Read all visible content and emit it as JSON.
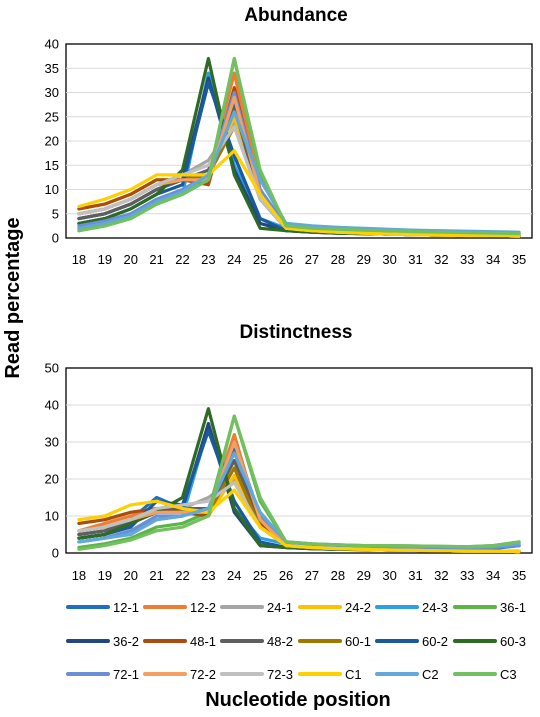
{
  "ylabel": "Read percentage",
  "xlabel": "Nucleotide position",
  "series_names": [
    "12-1",
    "12-2",
    "24-1",
    "24-2",
    "24-3",
    "36-1",
    "36-2",
    "48-1",
    "48-2",
    "60-1",
    "60-2",
    "60-3",
    "72-1",
    "72-2",
    "72-3",
    "C1",
    "C2",
    "C3"
  ],
  "series_colors": [
    "#1F6FC4",
    "#ED7D31",
    "#A5A5A5",
    "#FFC000",
    "#2E9FE0",
    "#5BB545",
    "#23477F",
    "#A84C10",
    "#5F5F5F",
    "#A07800",
    "#1A5A9A",
    "#2D6B24",
    "#6A8FD6",
    "#F4A060",
    "#C0C0C0",
    "#FFD000",
    "#62A8DA",
    "#72C060"
  ],
  "chart_data": [
    {
      "type": "line",
      "title": "Abundance",
      "x": [
        18,
        19,
        20,
        21,
        22,
        23,
        24,
        25,
        26,
        27,
        28,
        29,
        30,
        31,
        32,
        33,
        34,
        35
      ],
      "ylim": [
        0,
        40
      ],
      "yticks": [
        0,
        5,
        10,
        15,
        20,
        25,
        30,
        35,
        40
      ],
      "grid": true,
      "series": [
        {
          "name": "12-1",
          "values": [
            4,
            5,
            7,
            10,
            12,
            13,
            28,
            8,
            2,
            1.5,
            1.2,
            1,
            0.8,
            0.7,
            0.6,
            0.5,
            0.5,
            0.4
          ]
        },
        {
          "name": "12-2",
          "values": [
            5,
            6,
            8,
            11,
            12,
            13,
            34,
            10,
            2,
            1.5,
            1.2,
            1,
            0.8,
            0.7,
            0.6,
            0.5,
            0.5,
            0.4
          ]
        },
        {
          "name": "24-1",
          "values": [
            5,
            6,
            8,
            11,
            13,
            16,
            24,
            8,
            2,
            1.5,
            1.2,
            1,
            0.8,
            0.7,
            0.6,
            0.5,
            0.5,
            0.4
          ]
        },
        {
          "name": "24-2",
          "values": [
            6,
            7,
            9,
            12,
            12,
            13,
            25,
            9,
            2,
            1.5,
            1.2,
            1,
            0.8,
            0.7,
            0.6,
            0.5,
            0.5,
            0.4
          ]
        },
        {
          "name": "24-3",
          "values": [
            2,
            3,
            4.5,
            7,
            9,
            34,
            15,
            4,
            2,
            1.6,
            1.3,
            1.1,
            1,
            0.9,
            0.8,
            0.7,
            0.6,
            0.5
          ]
        },
        {
          "name": "36-1",
          "values": [
            1.5,
            2.5,
            4,
            7,
            9,
            12,
            37,
            13,
            2.5,
            2,
            1.8,
            1.6,
            1.5,
            1.3,
            1.2,
            1.1,
            1,
            0.9
          ]
        },
        {
          "name": "36-2",
          "values": [
            4,
            5,
            7,
            10,
            12,
            33,
            14,
            3,
            1.5,
            1.2,
            1,
            0.9,
            0.8,
            0.7,
            0.6,
            0.5,
            0.5,
            0.4
          ]
        },
        {
          "name": "48-1",
          "values": [
            6,
            7,
            9,
            12,
            12,
            11,
            31,
            9,
            2,
            1.5,
            1.2,
            1,
            0.8,
            0.7,
            0.6,
            0.5,
            0.5,
            0.4
          ]
        },
        {
          "name": "48-2",
          "values": [
            4,
            5,
            7,
            10,
            12,
            14,
            27,
            8,
            2,
            1.5,
            1.2,
            1,
            0.8,
            0.7,
            0.6,
            0.5,
            0.5,
            0.4
          ]
        },
        {
          "name": "60-1",
          "values": [
            5,
            6,
            8,
            11,
            12,
            13,
            23,
            8,
            2,
            1.5,
            1.2,
            1,
            0.8,
            0.7,
            0.6,
            0.5,
            0.5,
            0.4
          ]
        },
        {
          "name": "60-2",
          "values": [
            3,
            4,
            6,
            9,
            11,
            32,
            17,
            4,
            1.5,
            1.2,
            1,
            0.9,
            0.8,
            0.7,
            0.6,
            0.5,
            0.5,
            0.4
          ]
        },
        {
          "name": "60-3",
          "values": [
            3,
            4,
            6,
            9,
            14,
            37,
            13,
            2,
            1.5,
            1.2,
            1,
            0.9,
            0.8,
            0.7,
            0.6,
            0.5,
            0.5,
            0.4
          ]
        },
        {
          "name": "72-1",
          "values": [
            2.5,
            3.5,
            5,
            8,
            10,
            13,
            30,
            10,
            2.5,
            2,
            1.8,
            1.6,
            1.5,
            1.3,
            1.2,
            1.1,
            1,
            0.9
          ]
        },
        {
          "name": "72-2",
          "values": [
            5,
            6,
            8,
            11,
            12,
            12,
            29,
            9,
            2,
            1.5,
            1.2,
            1,
            0.8,
            0.7,
            0.6,
            0.5,
            0.5,
            0.4
          ]
        },
        {
          "name": "72-3",
          "values": [
            5,
            6,
            8,
            11,
            13,
            15,
            23,
            8,
            2,
            1.5,
            1.2,
            1,
            0.8,
            0.7,
            0.6,
            0.5,
            0.5,
            0.4
          ]
        },
        {
          "name": "C1",
          "values": [
            6.5,
            8,
            10,
            13,
            13,
            13,
            18,
            9,
            2,
            1.5,
            1.2,
            1,
            0.8,
            0.7,
            0.6,
            0.5,
            0.5,
            0.4
          ]
        },
        {
          "name": "C2",
          "values": [
            2,
            3,
            4.5,
            7.5,
            9.5,
            13,
            26,
            12,
            3,
            2.5,
            2.2,
            2,
            1.8,
            1.6,
            1.5,
            1.4,
            1.3,
            1.2
          ]
        },
        {
          "name": "C3",
          "values": [
            1.5,
            2.5,
            4,
            7,
            9,
            12,
            37,
            14,
            2.5,
            2,
            1.8,
            1.6,
            1.5,
            1.3,
            1.2,
            1.1,
            1,
            0.9
          ]
        }
      ]
    },
    {
      "type": "line",
      "title": "Distinctness",
      "x": [
        18,
        19,
        20,
        21,
        22,
        23,
        24,
        25,
        26,
        27,
        28,
        29,
        30,
        31,
        32,
        33,
        34,
        35
      ],
      "ylim": [
        0,
        50
      ],
      "yticks": [
        0,
        10,
        20,
        30,
        40,
        50
      ],
      "grid": true,
      "series": [
        {
          "name": "12-1",
          "values": [
            5,
            6,
            9,
            15,
            12,
            11,
            28,
            8,
            2,
            1.8,
            1.5,
            1.3,
            1.2,
            1.1,
            1,
            1,
            1.2,
            2
          ]
        },
        {
          "name": "12-2",
          "values": [
            6,
            8,
            10,
            12,
            11,
            11,
            32,
            8,
            2,
            1.5,
            1.2,
            1,
            0.8,
            0.7,
            0.6,
            0.5,
            0.5,
            0.4
          ]
        },
        {
          "name": "24-1",
          "values": [
            6,
            7,
            9,
            11,
            12,
            15,
            20,
            7,
            2,
            1.5,
            1.2,
            1,
            0.8,
            0.7,
            0.6,
            0.5,
            0.5,
            0.4
          ]
        },
        {
          "name": "24-2",
          "values": [
            8,
            9,
            11,
            12,
            11,
            10,
            21,
            7,
            2,
            1.5,
            1.2,
            1,
            0.8,
            0.7,
            0.6,
            0.5,
            0.5,
            0.4
          ]
        },
        {
          "name": "24-3",
          "values": [
            3,
            4,
            6,
            9,
            10,
            34,
            12,
            4,
            2.5,
            2.2,
            2,
            1.8,
            1.7,
            1.6,
            1.5,
            1.4,
            1.5,
            2
          ]
        },
        {
          "name": "36-1",
          "values": [
            1.5,
            2.5,
            4,
            7,
            8,
            11,
            37,
            14,
            3,
            2.5,
            2.2,
            2,
            2,
            1.9,
            1.8,
            1.7,
            2,
            3
          ]
        },
        {
          "name": "36-2",
          "values": [
            4,
            5,
            8,
            12,
            12,
            35,
            11,
            2,
            1.5,
            1.2,
            1,
            0.9,
            0.8,
            0.7,
            0.6,
            0.5,
            0.5,
            0.4
          ]
        },
        {
          "name": "48-1",
          "values": [
            8,
            9,
            11,
            12,
            11,
            10,
            30,
            8,
            2,
            1.5,
            1.2,
            1,
            0.8,
            0.7,
            0.6,
            0.5,
            0.5,
            0.4
          ]
        },
        {
          "name": "48-2",
          "values": [
            5,
            6,
            8,
            12,
            12,
            12,
            25,
            7,
            2,
            1.5,
            1.2,
            1,
            0.8,
            0.7,
            0.6,
            0.5,
            0.5,
            0.4
          ]
        },
        {
          "name": "60-1",
          "values": [
            6,
            7,
            9,
            11,
            11,
            11,
            23,
            7,
            2,
            1.5,
            1.2,
            1,
            0.8,
            0.7,
            0.6,
            0.5,
            0.5,
            0.4
          ]
        },
        {
          "name": "60-2",
          "values": [
            4,
            5,
            7,
            14,
            13,
            33,
            14,
            3,
            1.5,
            1.2,
            1,
            0.9,
            0.8,
            0.7,
            0.6,
            0.5,
            0.5,
            0.4
          ]
        },
        {
          "name": "60-3",
          "values": [
            4,
            5,
            8,
            11,
            15,
            39,
            12,
            2,
            1.5,
            1.2,
            1,
            0.9,
            0.8,
            0.7,
            0.6,
            0.5,
            0.5,
            0.4
          ]
        },
        {
          "name": "72-1",
          "values": [
            3,
            4,
            6,
            10,
            10,
            12,
            30,
            10,
            2.5,
            2.2,
            2,
            1.8,
            1.7,
            1.6,
            1.5,
            1.4,
            1.5,
            2
          ]
        },
        {
          "name": "72-2",
          "values": [
            6,
            7,
            9,
            11,
            11,
            11,
            30,
            9,
            2,
            1.5,
            1.2,
            1,
            0.8,
            0.7,
            0.6,
            0.5,
            0.5,
            0.4
          ]
        },
        {
          "name": "72-3",
          "values": [
            6,
            7,
            9,
            12,
            13,
            14,
            19,
            7,
            2,
            1.5,
            1.2,
            1,
            0.8,
            0.7,
            0.6,
            0.5,
            0.5,
            0.4
          ]
        },
        {
          "name": "C1",
          "values": [
            9,
            10,
            13,
            14,
            12,
            11,
            17,
            7,
            2,
            1.5,
            1.2,
            1,
            0.8,
            0.7,
            0.6,
            0.5,
            0.5,
            0.4
          ]
        },
        {
          "name": "C2",
          "values": [
            3,
            4,
            5,
            9,
            10,
            12,
            27,
            11,
            3,
            2.5,
            2.2,
            2,
            1.9,
            1.8,
            1.7,
            1.6,
            1.8,
            2.5
          ]
        },
        {
          "name": "C3",
          "values": [
            1,
            2,
            3.5,
            6,
            7,
            10,
            37,
            15,
            3,
            2.5,
            2.2,
            2,
            2,
            1.9,
            1.8,
            1.7,
            2,
            3
          ]
        }
      ]
    }
  ]
}
